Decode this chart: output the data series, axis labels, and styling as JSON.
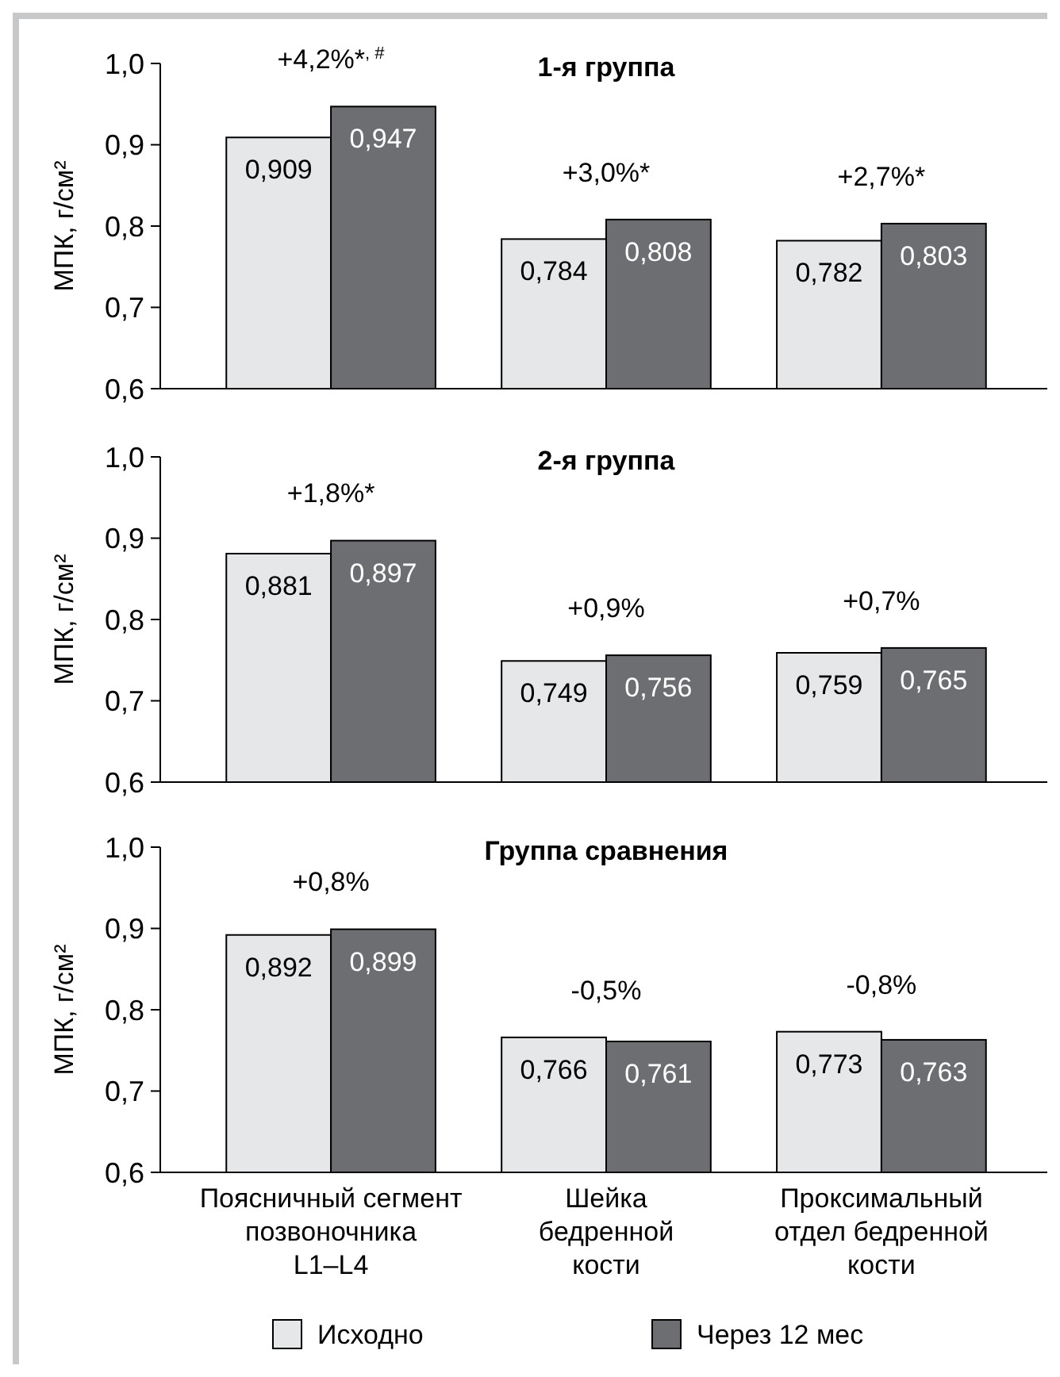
{
  "chart_data": [
    {
      "type": "bar",
      "title": "1-я группа",
      "ylabel": "МПК, г/см²",
      "categories": [
        null,
        null,
        null
      ],
      "series": [
        {
          "color": "#e6e7e9",
          "values": [
            0.909,
            0.784,
            0.782
          ],
          "value_labels": [
            "0,909",
            "0,784",
            "0,782"
          ]
        },
        {
          "color": "#6d6e71",
          "values": [
            0.947,
            0.808,
            0.803
          ],
          "value_labels": [
            "0,947",
            "0,808",
            "0,803"
          ]
        }
      ],
      "ylim": [
        0.6,
        1.0
      ],
      "yticks": [
        {
          "value": 0.6,
          "label": "0,6"
        },
        {
          "value": 0.7,
          "label": "0,7"
        },
        {
          "value": 0.8,
          "label": "0,8"
        },
        {
          "value": 0.9,
          "label": "0,9"
        },
        {
          "value": 1.0,
          "label": "1,0"
        }
      ],
      "tick_labels": "y",
      "legend": false,
      "grid": false,
      "annotations": [
        "+4,2%*$^{, #}$",
        "+3,0%*",
        "+2,7%*"
      ]
    },
    {
      "type": "bar",
      "title": "2-я группа",
      "ylabel": "МПК, г/см²",
      "categories": [
        null,
        null,
        null
      ],
      "series": [
        {
          "color": "#e6e7e9",
          "values": [
            0.881,
            0.749,
            0.759
          ],
          "value_labels": [
            "0,881",
            "0,749",
            "0,759"
          ]
        },
        {
          "color": "#6d6e71",
          "values": [
            0.897,
            0.756,
            0.765
          ],
          "value_labels": [
            "0,897",
            "0,756",
            "0,765"
          ]
        }
      ],
      "ylim": [
        0.6,
        1.0
      ],
      "yticks": [
        {
          "value": 0.6,
          "label": "0,6"
        },
        {
          "value": 0.7,
          "label": "0,7"
        },
        {
          "value": 0.8,
          "label": "0,8"
        },
        {
          "value": 0.9,
          "label": "0,9"
        },
        {
          "value": 1.0,
          "label": "1,0"
        }
      ],
      "tick_labels": "y",
      "legend": false,
      "grid": false,
      "annotations": [
        "+1,8%*",
        "+0,9%",
        "+0,7%"
      ]
    },
    {
      "type": "bar",
      "title": "Группа сравнения",
      "ylabel": "МПК, г/см²",
      "categories": [
        "Поясничный сегмент\nпозвоночника\nL1–L4",
        "Шейка\nбедренной\nкости",
        "Проксимальный\nотдел бедренной\nкости"
      ],
      "series": [
        {
          "name": "Исходно",
          "color": "#e6e7e9",
          "values": [
            0.892,
            0.766,
            0.773
          ],
          "value_labels": [
            "0,892",
            "0,766",
            "0,773"
          ]
        },
        {
          "name": "Через 12 мес",
          "color": "#6d6e71",
          "values": [
            0.899,
            0.761,
            0.763
          ],
          "value_labels": [
            "0,899",
            "0,761",
            "0,763"
          ]
        }
      ],
      "ylim": [
        0.6,
        1.0
      ],
      "yticks": [
        {
          "value": 0.6,
          "label": "0,6"
        },
        {
          "value": 0.7,
          "label": "0,7"
        },
        {
          "value": 0.8,
          "label": "0,8"
        },
        {
          "value": 0.9,
          "label": "0,9"
        },
        {
          "value": 1.0,
          "label": "1,0"
        }
      ],
      "legend": "bottom",
      "grid": false,
      "annotations": [
        "+0,8%",
        "-0,5%",
        "-0,8%"
      ]
    }
  ]
}
